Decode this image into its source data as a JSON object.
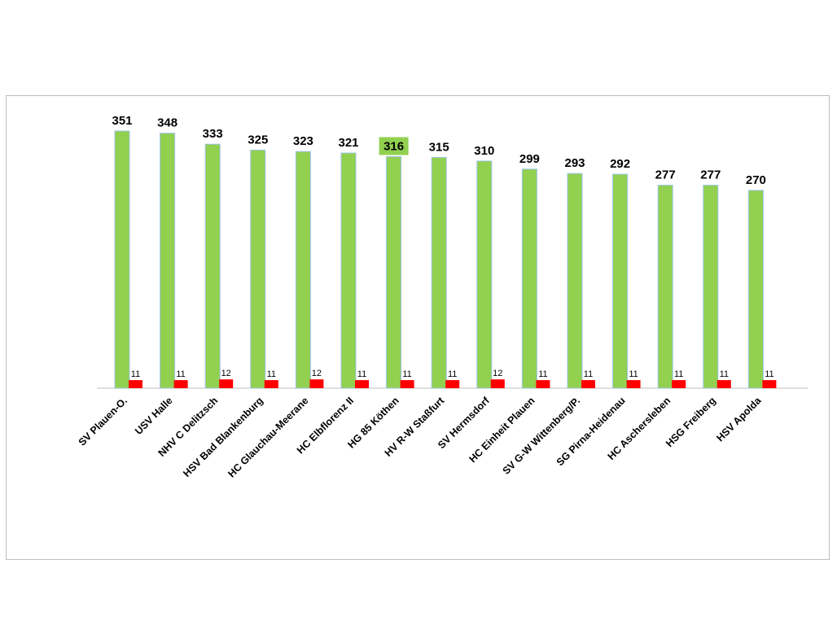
{
  "chart_data": {
    "type": "bar",
    "categories": [
      "SV Plauen-O.",
      "USV Halle",
      "NHV C Delitzsch",
      "HSV Bad Blankenburg",
      "HC Glauchau-Meerane",
      "HC Elbflorenz II",
      "HG 85 Köthen",
      "HV R-W Staßfurt",
      "SV Hermsdorf",
      "HC Einheit Plauen",
      "SV G-W Wittenberg/P.",
      "SG Pirna-Heidenau",
      "HC Aschersleben",
      "HSG Freiberg",
      "HSV Apolda"
    ],
    "series": [
      {
        "values": [
          351,
          348,
          333,
          325,
          323,
          321,
          316,
          315,
          310,
          299,
          293,
          292,
          277,
          277,
          270
        ],
        "color": "#92D050"
      },
      {
        "values": [
          11,
          11,
          12,
          11,
          12,
          11,
          11,
          11,
          12,
          11,
          11,
          11,
          11,
          11,
          11
        ],
        "color": "#FF0000"
      }
    ],
    "highlight_category": "HG 85 Köthen",
    "highlight_color": "#92D050",
    "bar_outline_color": "#9DC3E6",
    "ylim": [
      0,
      360
    ],
    "grid": false,
    "axis_color": "#bfbfbf",
    "title": "",
    "xlabel": "",
    "ylabel": ""
  }
}
